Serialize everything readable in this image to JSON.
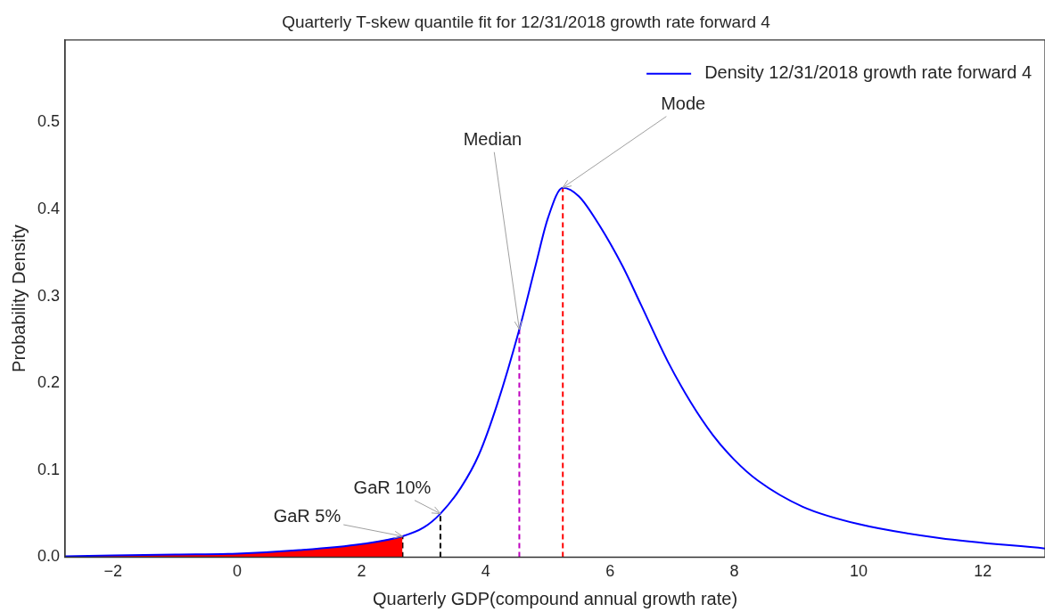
{
  "chart_data": {
    "type": "line",
    "title": "Quarterly T-skew quantile fit for 12/31/2018 growth rate forward 4",
    "xlabel": "Quarterly GDP(compound annual growth rate)",
    "ylabel": "Probability Density",
    "xlim": [
      -2.77,
      13
    ],
    "ylim": [
      0,
      0.595
    ],
    "xticks": [
      {
        "value": -2,
        "label": "−2"
      },
      0,
      2,
      4,
      6,
      8,
      10,
      12
    ],
    "yticks": [
      {
        "value": 0,
        "label": "0.0"
      },
      0.1,
      0.2,
      0.3,
      0.4,
      0.5
    ],
    "grid": false,
    "legend": "top right",
    "marker": "none",
    "series": [
      {
        "name": "Density 12/31/2018 growth rate forward 4",
        "type": "line",
        "color": "#0000ff",
        "x": [
          -2.77,
          -2,
          -1,
          0,
          1,
          2,
          2.66,
          3,
          3.27,
          3.6,
          3.89,
          4.18,
          4.54,
          4.8,
          5,
          5.24,
          5.5,
          5.8,
          6.2,
          6.5,
          6.93,
          7.3,
          7.66,
          8,
          8.38,
          9.1,
          10,
          11.3,
          13
        ],
        "values": [
          0.001,
          0.002,
          0.003,
          0.004,
          0.008,
          0.015,
          0.024,
          0.034,
          0.05,
          0.08,
          0.118,
          0.175,
          0.262,
          0.335,
          0.39,
          0.425,
          0.415,
          0.385,
          0.335,
          0.29,
          0.225,
          0.178,
          0.14,
          0.112,
          0.088,
          0.058,
          0.038,
          0.022,
          0.01
        ]
      },
      {
        "type": "area",
        "color": "#ff0000",
        "x": [
          -2.77,
          -2,
          -1,
          0,
          1,
          2,
          2.66
        ],
        "values": [
          0.001,
          0.002,
          0.003,
          0.004,
          0.008,
          0.015,
          0.024
        ]
      },
      {
        "type": "line",
        "color": "#000000",
        "line_style": "dashed",
        "x": [
          2.66,
          2.66
        ],
        "values": [
          0,
          0.024
        ]
      },
      {
        "type": "line",
        "color": "#000000",
        "line_style": "dashed",
        "x": [
          3.27,
          3.27
        ],
        "values": [
          0,
          0.05
        ]
      },
      {
        "type": "line",
        "color": "#bf00bf",
        "line_style": "dashed",
        "x": [
          4.54,
          4.54
        ],
        "values": [
          0,
          0.262
        ]
      },
      {
        "type": "line",
        "color": "#ff0000",
        "line_style": "dashed",
        "x": [
          5.24,
          5.24
        ],
        "values": [
          0,
          0.425
        ]
      }
    ],
    "annotations": [
      {
        "text": "GaR 5%",
        "x": 2.66,
        "y": 0.024
      },
      {
        "text": "GaR 10%",
        "x": 3.27,
        "y": 0.05
      },
      {
        "text": "Median",
        "x": 4.54,
        "y": 0.262
      },
      {
        "text": "Mode",
        "x": 5.24,
        "y": 0.425
      }
    ]
  }
}
